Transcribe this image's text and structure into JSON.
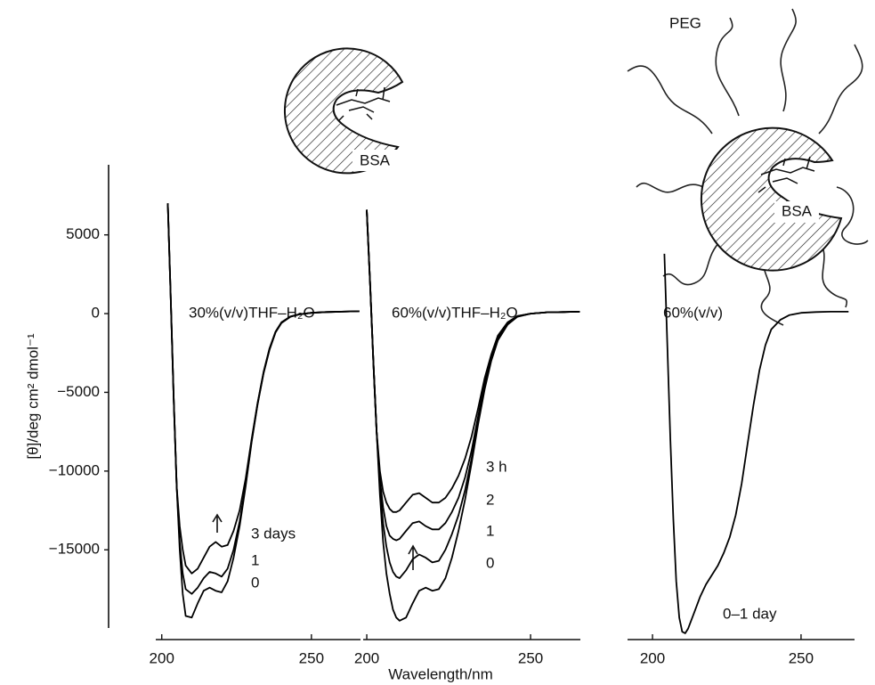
{
  "illustrations": {
    "left_protein": "BSA",
    "right_polymer": "PEG",
    "right_protein": "BSA"
  },
  "chart_data": [
    {
      "type": "line",
      "annotation": "30%(v/v)THF–H₂O",
      "ylabel": "[θ]/deg cm² dmol⁻¹",
      "x": [
        202,
        203,
        204,
        205,
        206,
        207,
        208,
        210,
        212,
        214,
        216,
        218,
        220,
        222,
        224,
        226,
        228,
        230,
        232,
        234,
        236,
        238,
        240,
        243,
        246,
        250,
        255,
        260,
        266
      ],
      "series": [
        {
          "name": "3 days",
          "color": "#000000",
          "values": [
            7000,
            1000,
            -5500,
            -11000,
            -13500,
            -15000,
            -16000,
            -16500,
            -16200,
            -15500,
            -14800,
            -14500,
            -14800,
            -14700,
            -13800,
            -12500,
            -10500,
            -8000,
            -5700,
            -3700,
            -2200,
            -1150,
            -550,
            -180,
            -40,
            50,
            100,
            120,
            150
          ]
        },
        {
          "name": "1",
          "color": "#000000",
          "values": [
            7000,
            1000,
            -5500,
            -11000,
            -14500,
            -16500,
            -17500,
            -17800,
            -17400,
            -16800,
            -16400,
            -16500,
            -16700,
            -16200,
            -15000,
            -13200,
            -10900,
            -8100,
            -5750,
            -3750,
            -2250,
            -1180,
            -570,
            -190,
            -45,
            50,
            100,
            120,
            150
          ]
        },
        {
          "name": "0",
          "color": "#000000",
          "values": [
            7000,
            1000,
            -5500,
            -11000,
            -15000,
            -17800,
            -19200,
            -19300,
            -18400,
            -17600,
            -17400,
            -17600,
            -17700,
            -17000,
            -15500,
            -13500,
            -11000,
            -8200,
            -5800,
            -3800,
            -2300,
            -1200,
            -600,
            -200,
            -50,
            50,
            100,
            120,
            150
          ]
        }
      ],
      "xlim": [
        198,
        266.4
      ],
      "ylim": [
        -20700,
        9450
      ],
      "xticks": [
        200,
        250
      ],
      "yticks": [
        5000,
        0,
        {
          "value": -5000,
          "label": "−5000"
        },
        {
          "value": -10000,
          "label": "−10000"
        },
        {
          "value": -15000,
          "label": "−15000"
        }
      ]
    },
    {
      "type": "line",
      "annotation": "60%(v/v)THF–H₂O",
      "xlabel": "Wavelength/nm",
      "x": [
        200,
        201,
        202,
        203,
        204,
        205,
        206,
        207,
        208,
        209,
        210,
        212,
        214,
        216,
        218,
        220,
        222,
        224,
        226,
        228,
        230,
        232,
        234,
        236,
        238,
        240,
        243,
        246,
        250,
        255,
        260,
        265
      ],
      "series": [
        {
          "name": "3 h",
          "color": "#000000",
          "values": [
            6600,
            2000,
            -3000,
            -7500,
            -10000,
            -11300,
            -12000,
            -12400,
            -12600,
            -12600,
            -12500,
            -12000,
            -11500,
            -11400,
            -11700,
            -12000,
            -12000,
            -11700,
            -11100,
            -10300,
            -9200,
            -7800,
            -6000,
            -4100,
            -2600,
            -1400,
            -550,
            -150,
            0,
            80,
            100,
            120
          ]
        },
        {
          "name": "2",
          "color": "#000000",
          "values": [
            6600,
            2000,
            -3000,
            -7500,
            -10500,
            -12300,
            -13500,
            -14100,
            -14300,
            -14400,
            -14300,
            -13800,
            -13300,
            -13200,
            -13500,
            -13700,
            -13700,
            -13300,
            -12600,
            -11700,
            -10400,
            -8700,
            -6500,
            -4400,
            -2800,
            -1500,
            -600,
            -160,
            0,
            80,
            100,
            120
          ]
        },
        {
          "name": "1",
          "color": "#000000",
          "values": [
            6600,
            2000,
            -3000,
            -7500,
            -11000,
            -13300,
            -14800,
            -15800,
            -16400,
            -16700,
            -16800,
            -16300,
            -15600,
            -15300,
            -15500,
            -15800,
            -15700,
            -15000,
            -14000,
            -12800,
            -11200,
            -9200,
            -6800,
            -4600,
            -2900,
            -1600,
            -650,
            -180,
            0,
            80,
            100,
            120
          ]
        },
        {
          "name": "0",
          "color": "#000000",
          "values": [
            6600,
            2000,
            -3000,
            -7500,
            -11500,
            -14500,
            -16500,
            -17800,
            -18800,
            -19300,
            -19500,
            -19300,
            -18400,
            -17600,
            -17400,
            -17600,
            -17500,
            -16800,
            -15500,
            -13800,
            -11800,
            -9500,
            -7000,
            -4800,
            -3000,
            -1700,
            -700,
            -200,
            0,
            80,
            100,
            120
          ]
        }
      ],
      "xlim": [
        198.9,
        265.2
      ],
      "ylim": [
        -20700,
        9450
      ],
      "xticks": [
        200,
        250
      ]
    },
    {
      "type": "line",
      "annotation": "60%(v/v)",
      "x": [
        204,
        205,
        206,
        207,
        208,
        209,
        210,
        211,
        212,
        214,
        216,
        218,
        220,
        222,
        224,
        226,
        228,
        230,
        232,
        234,
        236,
        238,
        240,
        243,
        246,
        250,
        255,
        260,
        266
      ],
      "series": [
        {
          "name": "0–1 day",
          "color": "#000000",
          "values": [
            3800,
            -2000,
            -8000,
            -13000,
            -17000,
            -19300,
            -20200,
            -20300,
            -20000,
            -19000,
            -18000,
            -17200,
            -16600,
            -16000,
            -15200,
            -14200,
            -12800,
            -10800,
            -8300,
            -5800,
            -3600,
            -2000,
            -1000,
            -400,
            -100,
            50,
            100,
            120,
            120
          ]
        }
      ],
      "xlim": [
        191.6,
        268
      ],
      "ylim": [
        -20700,
        9450
      ],
      "xticks": [
        200,
        250
      ]
    }
  ]
}
